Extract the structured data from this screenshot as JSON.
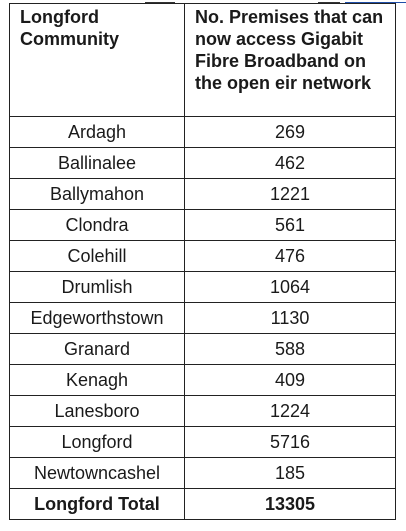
{
  "table": {
    "headers": [
      "Longford Community",
      "No. Premises that can now access Gigabit Fibre Broadband on the open eir network"
    ],
    "rows": [
      {
        "community": "Ardagh",
        "premises": "269"
      },
      {
        "community": "Ballinalee",
        "premises": "462"
      },
      {
        "community": "Ballymahon",
        "premises": "1221"
      },
      {
        "community": "Clondra",
        "premises": "561"
      },
      {
        "community": "Colehill",
        "premises": "476"
      },
      {
        "community": "Drumlish",
        "premises": "1064"
      },
      {
        "community": "Edgeworthstown",
        "premises": "1130"
      },
      {
        "community": "Granard",
        "premises": "588"
      },
      {
        "community": "Kenagh",
        "premises": "409"
      },
      {
        "community": "Lanesboro",
        "premises": "1224"
      },
      {
        "community": "Longford",
        "premises": "5716"
      },
      {
        "community": "Newtowncashel",
        "premises": "185"
      }
    ],
    "total": {
      "label": "Longford Total",
      "value": "13305"
    }
  }
}
